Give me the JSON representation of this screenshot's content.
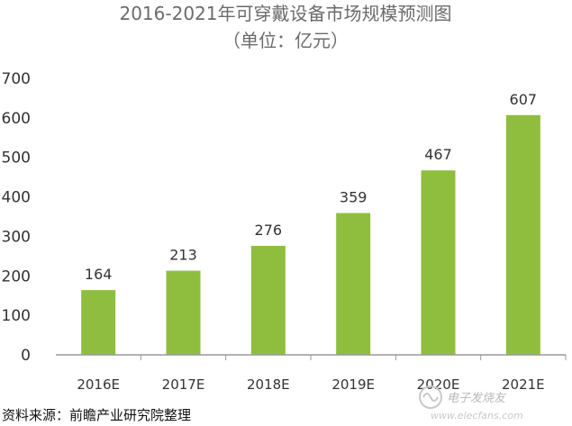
{
  "chart_data": {
    "type": "bar",
    "title": "2016-2021年可穿戴设备市场规模预测图",
    "subtitle": "（单位：亿元）",
    "categories": [
      "2016E",
      "2017E",
      "2018E",
      "2019E",
      "2020E",
      "2021E"
    ],
    "values": [
      164,
      213,
      276,
      359,
      467,
      607
    ],
    "ylim": [
      0,
      700
    ],
    "yticks": [
      0,
      100,
      200,
      300,
      400,
      500,
      600,
      700
    ],
    "grid": false,
    "legend": "none",
    "bar_color": "#8fbe3f",
    "axis_color": "#9a9a9a"
  },
  "source": "资料来源：前瞻产业研究院整理",
  "watermark": {
    "brand": "电子发烧友",
    "url": "www.elecfans.com"
  }
}
